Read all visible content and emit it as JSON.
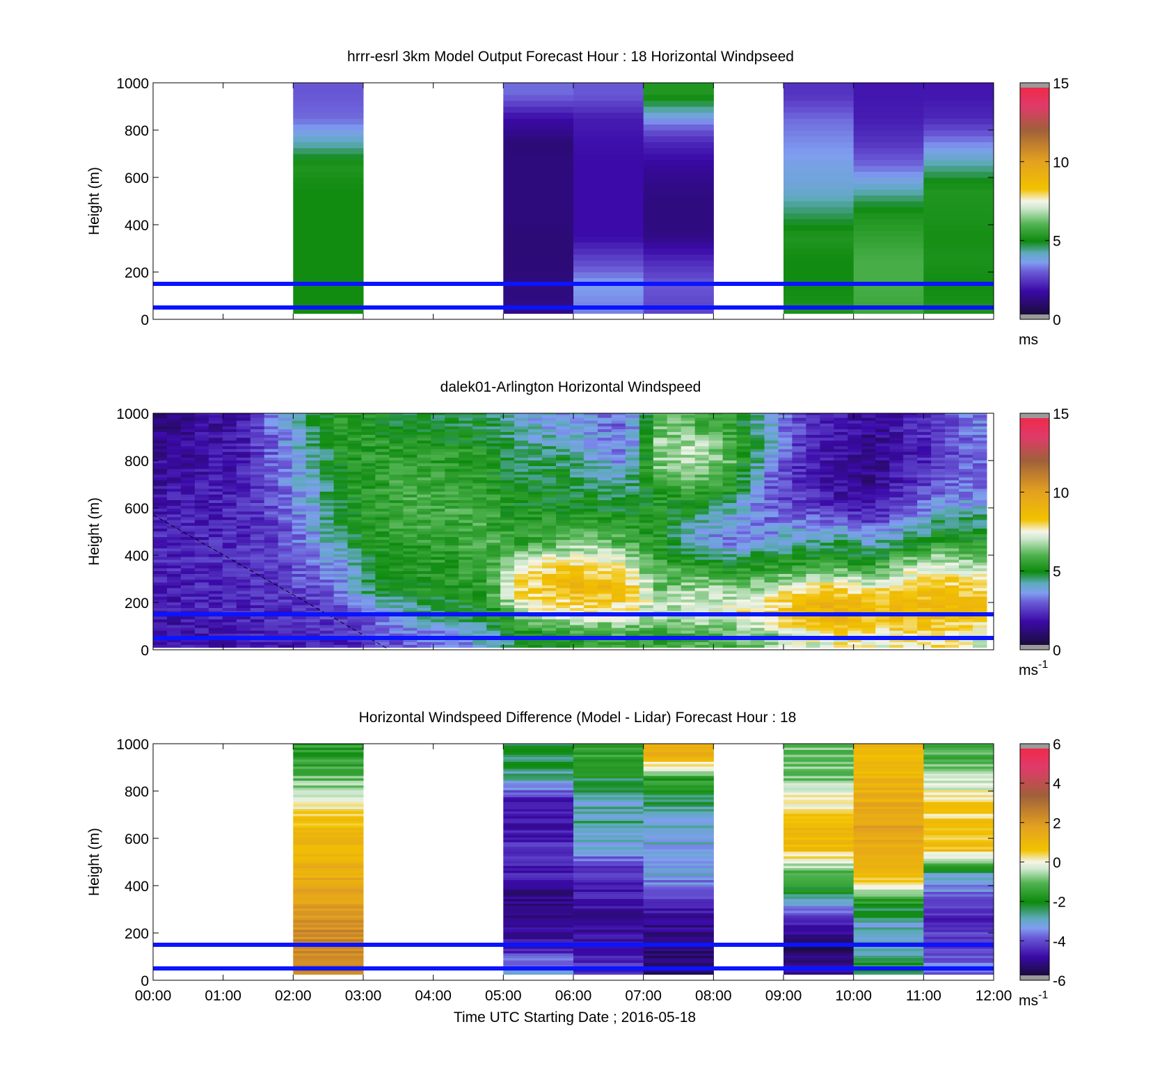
{
  "figure": {
    "xlabel": "Time UTC  Starting Date ; 2016-05-18"
  },
  "chart_data": [
    {
      "type": "heatmap",
      "title": "hrrr-esrl 3km Model Output   Forecast Hour : 18 Horizontal Windpseed",
      "ylabel": "Height (m)",
      "y_ticks": [
        "0",
        "200",
        "400",
        "600",
        "800",
        "1000"
      ],
      "ylim": [
        0,
        1000
      ],
      "xlim_hours": [
        0,
        12
      ],
      "colorbar": {
        "ticks": [
          "0",
          "5",
          "10",
          "15"
        ],
        "range": [
          0,
          15
        ],
        "unit": "ms",
        "unit_sup": ""
      },
      "reference_lines_m": [
        50,
        150
      ],
      "heights_m": [
        50,
        150,
        250,
        350,
        450,
        550,
        650,
        750,
        850,
        950
      ],
      "columns": [
        {
          "start_hour": 2,
          "end_hour": 3,
          "values": [
            5.0,
            5.0,
            5.0,
            5.0,
            5.0,
            5.0,
            5.3,
            4.0,
            3.0,
            2.8
          ]
        },
        {
          "start_hour": 5,
          "end_hour": 6,
          "values": [
            1.0,
            0.9,
            0.8,
            0.8,
            0.9,
            0.9,
            0.9,
            0.8,
            1.5,
            3.0
          ]
        },
        {
          "start_hour": 6,
          "end_hour": 7,
          "values": [
            3.2,
            3.5,
            2.5,
            1.5,
            1.5,
            1.5,
            1.5,
            1.6,
            1.8,
            2.8
          ]
        },
        {
          "start_hour": 7,
          "end_hour": 8,
          "values": [
            2.5,
            2.8,
            2.0,
            1.0,
            0.9,
            1.0,
            1.3,
            2.0,
            3.5,
            5.3
          ]
        },
        {
          "start_hour": 9,
          "end_hour": 10,
          "values": [
            5.2,
            5.0,
            5.0,
            5.3,
            4.5,
            3.8,
            3.6,
            3.3,
            3.0,
            2.2
          ]
        },
        {
          "start_hour": 10,
          "end_hour": 11,
          "values": [
            5.8,
            6.0,
            6.0,
            5.6,
            5.2,
            4.0,
            3.0,
            2.2,
            1.8,
            1.7
          ]
        },
        {
          "start_hour": 11,
          "end_hour": 12,
          "values": [
            5.2,
            5.0,
            5.2,
            5.1,
            5.2,
            5.3,
            4.2,
            3.2,
            2.0,
            1.7
          ]
        }
      ]
    },
    {
      "type": "heatmap",
      "title": "dalek01-Arlington  Horizontal Windspeed",
      "ylabel": "Height (m)",
      "y_ticks": [
        "0",
        "200",
        "400",
        "600",
        "800",
        "1000"
      ],
      "ylim": [
        0,
        1000
      ],
      "xlim_hours": [
        0,
        12
      ],
      "colorbar": {
        "ticks": [
          "0",
          "5",
          "10",
          "15"
        ],
        "range": [
          0,
          15
        ],
        "unit": "ms",
        "unit_sup": "-1"
      },
      "reference_lines_m": [
        50,
        150
      ],
      "profile_heights_m": [
        50,
        150,
        250,
        350,
        450,
        550,
        650,
        750,
        850,
        950
      ],
      "profiles": [
        {
          "hour": 0.25,
          "values": [
            1.5,
            1.6,
            1.8,
            1.9,
            1.9,
            1.8,
            1.6,
            1.4,
            1.2,
            1.0
          ]
        },
        {
          "hour": 0.75,
          "values": [
            1.6,
            1.8,
            2.0,
            2.0,
            2.0,
            1.9,
            1.8,
            1.6,
            1.5,
            1.4
          ]
        },
        {
          "hour": 1.25,
          "values": [
            1.7,
            1.9,
            2.0,
            2.1,
            2.1,
            2.0,
            1.9,
            1.8,
            1.7,
            1.6
          ]
        },
        {
          "hour": 1.75,
          "values": [
            1.8,
            2.0,
            2.2,
            2.3,
            2.4,
            2.5,
            2.7,
            2.9,
            3.0,
            3.2
          ]
        },
        {
          "hour": 2.25,
          "values": [
            1.9,
            2.2,
            2.6,
            3.0,
            3.4,
            3.6,
            3.8,
            4.0,
            4.2,
            4.5
          ]
        },
        {
          "hour": 2.75,
          "values": [
            2.0,
            2.5,
            3.4,
            3.6,
            4.6,
            5.0,
            5.2,
            5.3,
            5.4,
            5.5
          ]
        },
        {
          "hour": 3.25,
          "values": [
            2.5,
            3.2,
            5.0,
            5.2,
            5.4,
            5.6,
            5.6,
            5.5,
            5.5,
            5.2
          ]
        },
        {
          "hour": 3.75,
          "values": [
            3.0,
            4.2,
            5.2,
            5.4,
            5.6,
            5.8,
            5.9,
            5.8,
            5.5,
            4.8
          ]
        },
        {
          "hour": 4.25,
          "values": [
            3.2,
            4.6,
            5.3,
            5.5,
            5.6,
            5.8,
            5.9,
            5.6,
            5.4,
            4.5
          ]
        },
        {
          "hour": 4.75,
          "values": [
            3.8,
            5.0,
            5.5,
            5.8,
            6.0,
            5.8,
            5.6,
            5.4,
            5.2,
            4.8
          ]
        },
        {
          "hour": 5.25,
          "values": [
            4.8,
            6.8,
            8.0,
            7.2,
            5.6,
            5.2,
            5.0,
            4.6,
            4.2,
            3.8
          ]
        },
        {
          "hour": 5.75,
          "values": [
            5.2,
            7.4,
            8.6,
            8.0,
            6.2,
            5.4,
            5.0,
            4.8,
            4.3,
            3.6
          ]
        },
        {
          "hour": 6.25,
          "values": [
            5.5,
            7.6,
            8.8,
            8.0,
            6.4,
            5.4,
            4.8,
            4.2,
            3.8,
            3.4
          ]
        },
        {
          "hour": 6.75,
          "values": [
            5.8,
            7.4,
            8.6,
            7.5,
            6.0,
            5.2,
            4.6,
            3.6,
            3.0,
            2.8
          ]
        },
        {
          "hour": 7.25,
          "values": [
            5.6,
            7.0,
            6.4,
            5.8,
            5.4,
            5.2,
            5.4,
            6.4,
            6.8,
            6.2
          ]
        },
        {
          "hour": 7.75,
          "values": [
            5.8,
            7.2,
            6.8,
            5.6,
            3.4,
            4.4,
            5.6,
            6.8,
            7.0,
            6.0
          ]
        },
        {
          "hour": 8.25,
          "values": [
            6.0,
            7.6,
            6.6,
            5.0,
            3.2,
            3.6,
            5.0,
            6.0,
            6.2,
            5.6
          ]
        },
        {
          "hour": 8.75,
          "values": [
            6.4,
            8.0,
            7.0,
            5.4,
            3.6,
            3.0,
            2.8,
            3.2,
            4.2,
            3.8
          ]
        },
        {
          "hour": 9.25,
          "values": [
            7.2,
            8.8,
            7.8,
            5.6,
            4.2,
            3.0,
            2.2,
            2.0,
            2.2,
            2.4
          ]
        },
        {
          "hour": 9.75,
          "values": [
            7.6,
            9.2,
            8.2,
            5.8,
            4.6,
            2.6,
            1.6,
            1.4,
            1.6,
            1.8
          ]
        },
        {
          "hour": 10.25,
          "values": [
            7.4,
            8.8,
            7.6,
            5.4,
            4.0,
            2.2,
            1.2,
            1.0,
            1.0,
            1.2
          ]
        },
        {
          "hour": 10.75,
          "values": [
            7.6,
            8.6,
            8.4,
            7.0,
            4.6,
            3.0,
            2.2,
            1.8,
            1.6,
            1.8
          ]
        },
        {
          "hour": 11.25,
          "values": [
            7.8,
            8.8,
            8.6,
            7.4,
            5.6,
            4.2,
            3.0,
            2.4,
            2.2,
            2.6
          ]
        },
        {
          "hour": 11.75,
          "values": [
            7.2,
            8.4,
            8.0,
            6.8,
            5.4,
            4.4,
            3.2,
            3.0,
            3.0,
            3.2
          ]
        }
      ],
      "data_end_hour": 11.9
    },
    {
      "type": "heatmap",
      "title": "Horizontal Windspeed Difference (Model - Lidar) Forecast Hour : 18",
      "ylabel": "Height (m)",
      "y_ticks": [
        "0",
        "200",
        "400",
        "600",
        "800",
        "1000"
      ],
      "ylim": [
        0,
        1000
      ],
      "xlim_hours": [
        0,
        12
      ],
      "x_ticks": [
        "00:00",
        "01:00",
        "02:00",
        "03:00",
        "04:00",
        "05:00",
        "06:00",
        "07:00",
        "08:00",
        "09:00",
        "10:00",
        "11:00",
        "12:00"
      ],
      "colorbar": {
        "ticks": [
          "-6",
          "-4",
          "-2",
          "0",
          "2",
          "4",
          "6"
        ],
        "range": [
          -6,
          6
        ],
        "unit": "ms",
        "unit_sup": "-1"
      },
      "reference_lines_m": [
        50,
        150
      ],
      "heights_m": [
        50,
        150,
        250,
        350,
        450,
        550,
        650,
        750,
        850,
        950
      ],
      "columns": [
        {
          "start_hour": 2,
          "end_hour": 3,
          "values": [
            2.5,
            2.6,
            2.2,
            1.7,
            1.4,
            1.0,
            0.8,
            0.1,
            -1.0,
            -1.6
          ]
        },
        {
          "start_hour": 5,
          "end_hour": 6,
          "values": [
            -3.0,
            -4.8,
            -5.0,
            -5.2,
            -4.6,
            -4.2,
            -4.8,
            -4.7,
            -2.8,
            -2.2
          ]
        },
        {
          "start_hour": 6,
          "end_hour": 7,
          "values": [
            -4.2,
            -4.6,
            -5.2,
            -4.6,
            -4.4,
            -3.2,
            -2.6,
            -2.8,
            -2.2,
            -1.4
          ]
        },
        {
          "start_hour": 7,
          "end_hour": 8,
          "values": [
            -5.6,
            -5.4,
            -5.0,
            -4.2,
            -3.0,
            -3.0,
            -3.0,
            -2.4,
            -1.6,
            1.2
          ]
        },
        {
          "start_hour": 9,
          "end_hour": 10,
          "values": [
            -5.0,
            -5.6,
            -4.6,
            -2.4,
            -1.2,
            0.8,
            0.9,
            0.1,
            -0.8,
            -1.0
          ]
        },
        {
          "start_hour": 10,
          "end_hour": 11,
          "values": [
            -2.2,
            -3.0,
            -2.8,
            -1.4,
            1.0,
            1.6,
            1.8,
            1.4,
            1.2,
            1.0
          ]
        },
        {
          "start_hour": 11,
          "end_hour": 12,
          "values": [
            -3.6,
            -4.0,
            -4.4,
            -3.8,
            -2.6,
            0.7,
            0.6,
            0.4,
            -0.4,
            -1.2
          ]
        }
      ]
    }
  ]
}
